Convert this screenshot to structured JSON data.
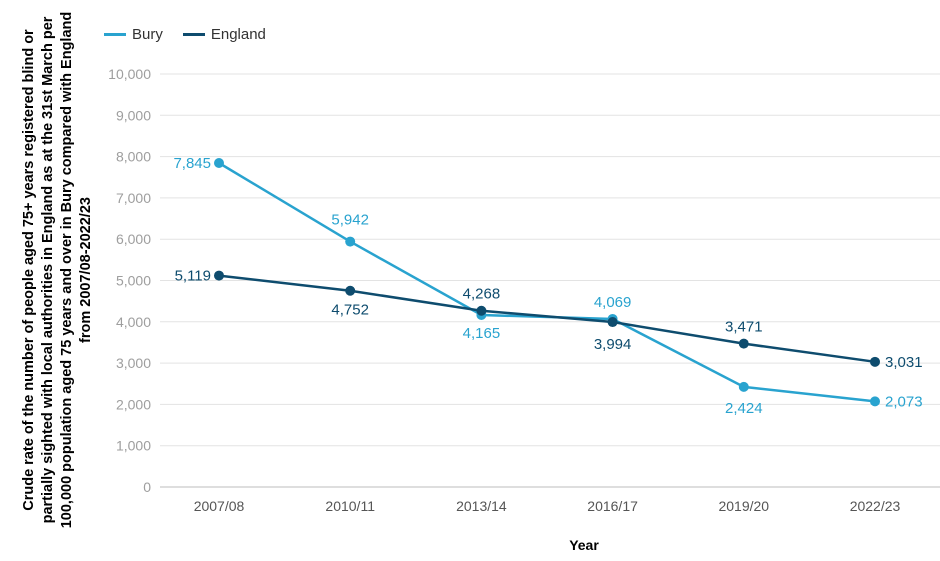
{
  "chart_data": {
    "type": "line",
    "categories": [
      "2007/08",
      "2010/11",
      "2013/14",
      "2016/17",
      "2019/20",
      "2022/23"
    ],
    "series": [
      {
        "name": "Bury",
        "color": "#29a3cf",
        "values": [
          7845,
          5942,
          4165,
          4069,
          2424,
          2073
        ],
        "labels": [
          "7,845",
          "5,942",
          "4,165",
          "4,069",
          "2,424",
          "2,073"
        ]
      },
      {
        "name": "England",
        "color": "#0e4c6e",
        "values": [
          5119,
          4752,
          4268,
          3994,
          3471,
          3031
        ],
        "labels": [
          "5,119",
          "4,752",
          "4,268",
          "3,994",
          "3,471",
          "3,031"
        ]
      }
    ],
    "ylim": [
      0,
      10000
    ],
    "yticks": [
      "0",
      "1,000",
      "2,000",
      "3,000",
      "4,000",
      "5,000",
      "6,000",
      "7,000",
      "8,000",
      "9,000",
      "10,000"
    ],
    "xlabel": "Year",
    "ylabel": "Crude rate of the number of people aged 75+ years registered blind or partially sighted with local authorities in England as at the 31st March per 100,000 population aged 75 years and over in Bury compared with England from 2007/08-2022/23",
    "grid": true,
    "legend_position": "top-left"
  }
}
